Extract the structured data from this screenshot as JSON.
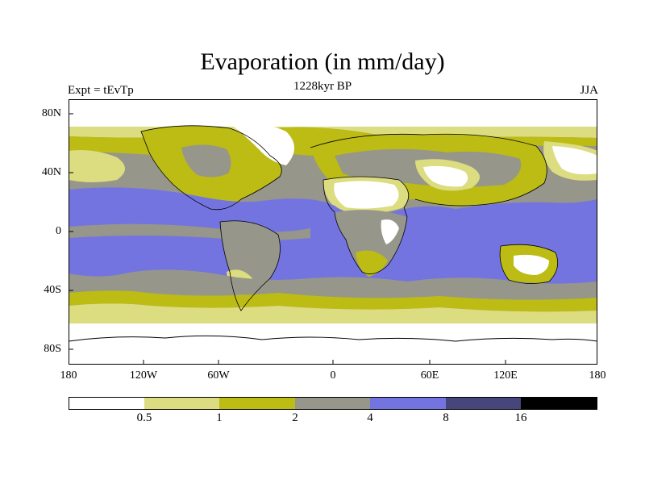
{
  "title": "Evaporation (in mm/day)",
  "subtitle": "1228kyr BP",
  "left_label": "Expt = tEvTp",
  "right_label": "JJA",
  "y_ticks": [
    "80N",
    "40N",
    "0",
    "40S",
    "80S"
  ],
  "x_ticks": [
    "180",
    "120W",
    "60W",
    "0",
    "60E",
    "120E",
    "180"
  ],
  "colorbar": {
    "labels": [
      "0.5",
      "1",
      "2",
      "4",
      "8",
      "16"
    ],
    "colors": [
      "#ffffff",
      "#dcdc80",
      "#bcbc14",
      "#96968a",
      "#7474e0",
      "#46467a",
      "#000000"
    ]
  },
  "colors": {
    "ocean_background": "#96968a",
    "land_arid": "#ffffff",
    "land_dry": "#dcdc80",
    "land_moderate": "#bcbc14",
    "tropical_band": "#7474e0",
    "high_evap": "#46467a",
    "coastline": "#000000"
  }
}
